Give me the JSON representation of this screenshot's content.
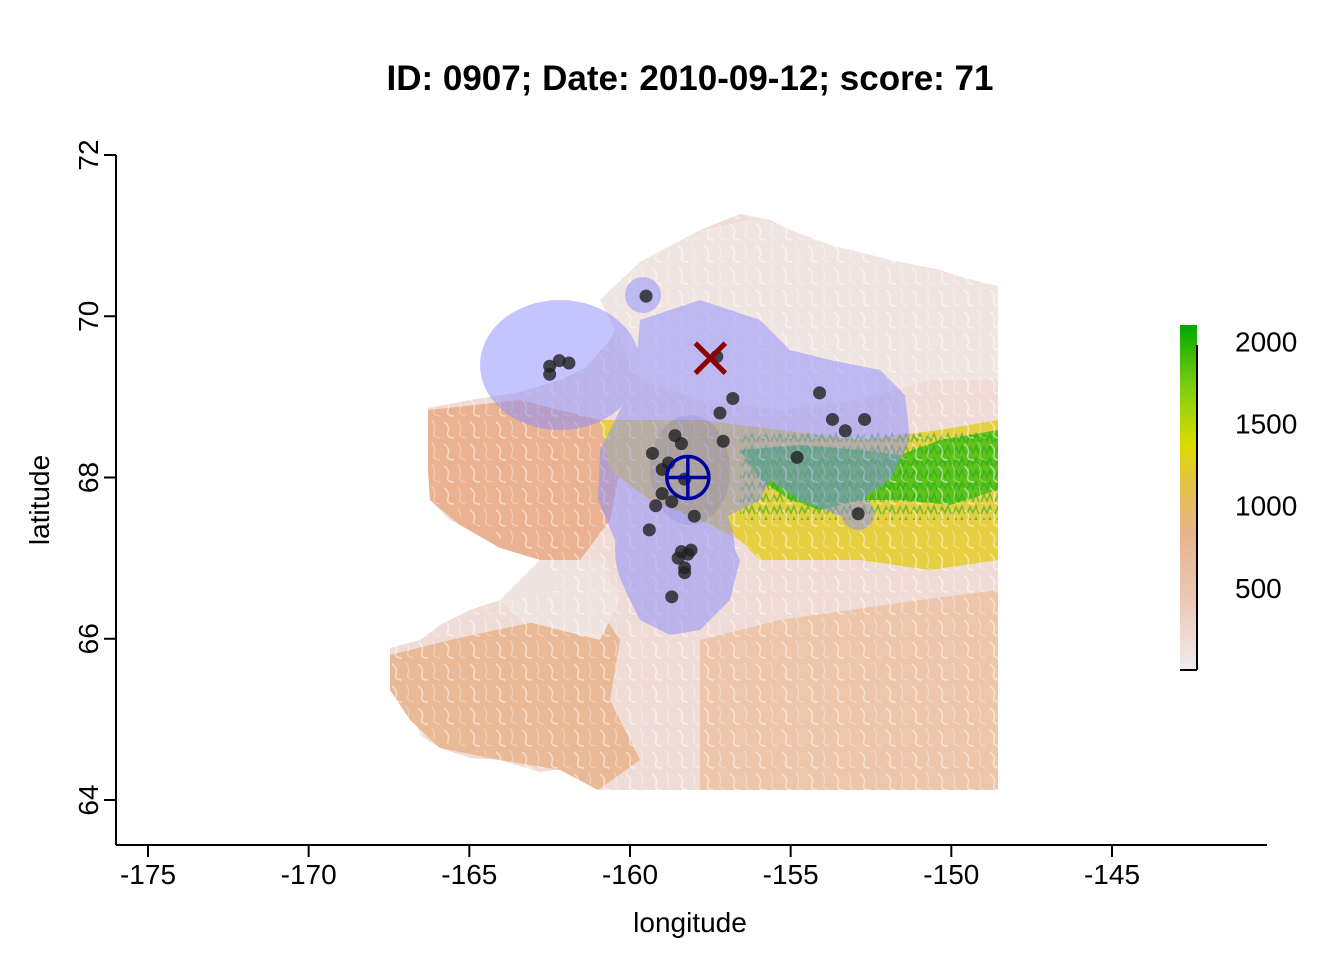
{
  "title": "ID: 0907;  Date: 2010-09-12;  score: 71",
  "x_axis": {
    "label": "longitude",
    "ticks": [
      "-175",
      "-170",
      "-165",
      "-160",
      "-155",
      "-150",
      "-145"
    ],
    "range": [
      -176,
      -140.2
    ]
  },
  "y_axis": {
    "label": "latitude",
    "ticks": [
      "64",
      "66",
      "68",
      "70",
      "72"
    ],
    "range": [
      63.45,
      72.05
    ]
  },
  "legend": {
    "type": "elevation color scale",
    "ticks": [
      "500",
      "1000",
      "1500",
      "2000"
    ],
    "range": [
      0,
      2100
    ],
    "colors": [
      "#f0ecec",
      "#ecc8b8",
      "#e6b48a",
      "#e2c440",
      "#dcdc00",
      "#7ece10",
      "#00a800"
    ]
  },
  "map": {
    "terrain": "elevation raster of northern/northwestern Alaska (Brooks Range, Seward Peninsula)",
    "colors": {
      "low": "#f2eded",
      "mid": "#eab08a",
      "high_yellow": "#e6d400",
      "high_green": "#16a800",
      "buffer": "#8a8cff",
      "points": "#202020"
    },
    "points": [
      [
        -159.5,
        70.25
      ],
      [
        -162.5,
        69.38
      ],
      [
        -162.2,
        69.45
      ],
      [
        -161.9,
        69.42
      ],
      [
        -162.5,
        69.28
      ],
      [
        -157.3,
        69.5
      ],
      [
        -156.8,
        68.98
      ],
      [
        -157.2,
        68.8
      ],
      [
        -157.1,
        68.45
      ],
      [
        -158.6,
        68.52
      ],
      [
        -158.4,
        68.42
      ],
      [
        -159.3,
        68.3
      ],
      [
        -158.8,
        68.18
      ],
      [
        -159.0,
        68.1
      ],
      [
        -158.3,
        67.98
      ],
      [
        -159.0,
        67.8
      ],
      [
        -158.7,
        67.7
      ],
      [
        -159.2,
        67.65
      ],
      [
        -158.0,
        67.52
      ],
      [
        -159.4,
        67.35
      ],
      [
        -158.4,
        67.08
      ],
      [
        -158.2,
        67.05
      ],
      [
        -158.5,
        67.0
      ],
      [
        -158.1,
        67.1
      ],
      [
        -158.3,
        66.88
      ],
      [
        -158.3,
        66.82
      ],
      [
        -158.7,
        66.52
      ],
      [
        -154.8,
        68.25
      ],
      [
        -154.1,
        69.05
      ],
      [
        -153.7,
        68.72
      ],
      [
        -153.3,
        68.58
      ],
      [
        -152.7,
        68.72
      ],
      [
        -152.9,
        67.55
      ]
    ],
    "estimated_center": {
      "lon": -158.2,
      "lat": 68.0,
      "symbol": "circle-plus",
      "color": "#0000a0"
    },
    "true_location": {
      "lon": -157.5,
      "lat": 69.48,
      "symbol": "x",
      "color": "#8b0000"
    }
  }
}
